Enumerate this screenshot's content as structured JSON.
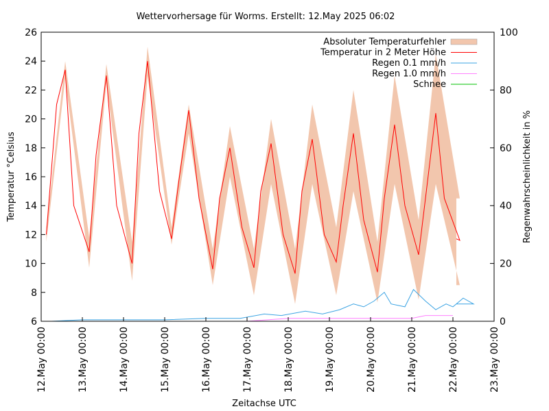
{
  "chart_data": {
    "type": "line",
    "title": "Wettervorhersage für Worms. Erstellt: 12.May 2025 06:02",
    "xlabel": "Zeitachse UTC",
    "ylabel": "Temperatur °Celsius",
    "y2label": "Regenwahrscheinlichkeit in %",
    "ylim": [
      6,
      26
    ],
    "y2lim": [
      0,
      100
    ],
    "xlim": [
      "2025-05-12 00:00",
      "2025-05-23 00:00"
    ],
    "x_ticks": [
      "12.May 00:00",
      "13.May 00:00",
      "14.May 00:00",
      "15.May 00:00",
      "16.May 00:00",
      "17.May 00:00",
      "18.May 00:00",
      "19.May 00:00",
      "20.May 00:00",
      "21.May 00:00",
      "22.May 00:00",
      "23.May 00:00"
    ],
    "y_ticks": [
      "6",
      "8",
      "10",
      "12",
      "14",
      "16",
      "18",
      "20",
      "22",
      "24",
      "26"
    ],
    "y2_ticks": [
      "0",
      "20",
      "40",
      "60",
      "80",
      "100"
    ],
    "grid": false,
    "legend_position": "top-right",
    "colors": {
      "band": "#f2c6ad",
      "temp": "#ff0000",
      "rain01": "#3aa3e3",
      "rain10": "#ff80ff",
      "snow": "#00c000"
    },
    "legend": [
      {
        "label": "Absoluter Temperaturfehler",
        "color": "#f2c6ad",
        "kind": "box"
      },
      {
        "label": "Temperatur in 2 Meter Höhe",
        "color": "#ff0000",
        "kind": "line"
      },
      {
        "label": "Regen 0.1 mm/h",
        "color": "#3aa3e3",
        "kind": "line"
      },
      {
        "label": "Regen 1.0 mm/h",
        "color": "#ff80ff",
        "kind": "line"
      },
      {
        "label": "Schnee",
        "color": "#00c000",
        "kind": "line"
      }
    ],
    "temperature_series": {
      "name": "Temperatur in 2 Meter Höhe",
      "x": [
        "2025-05-12 03:00",
        "2025-05-12 09:00",
        "2025-05-12 14:00",
        "2025-05-12 19:00",
        "2025-05-13 04:00",
        "2025-05-13 08:00",
        "2025-05-13 14:00",
        "2025-05-13 20:00",
        "2025-05-14 05:00",
        "2025-05-14 09:00",
        "2025-05-14 14:00",
        "2025-05-14 21:00",
        "2025-05-15 04:00",
        "2025-05-15 08:00",
        "2025-05-15 14:00",
        "2025-05-15 20:00",
        "2025-05-16 04:00",
        "2025-05-16 08:00",
        "2025-05-16 14:00",
        "2025-05-16 21:00",
        "2025-05-17 04:00",
        "2025-05-17 08:00",
        "2025-05-17 14:00",
        "2025-05-17 21:00",
        "2025-05-18 04:00",
        "2025-05-18 08:00",
        "2025-05-18 14:00",
        "2025-05-18 21:00",
        "2025-05-19 04:00",
        "2025-05-19 08:00",
        "2025-05-19 14:00",
        "2025-05-19 20:00",
        "2025-05-20 04:00",
        "2025-05-20 08:00",
        "2025-05-20 14:00",
        "2025-05-20 20:00",
        "2025-05-21 04:00",
        "2025-05-21 08:00",
        "2025-05-21 14:00",
        "2025-05-21 19:00",
        "2025-05-22 04:00",
        "2025-05-22 02:00"
      ],
      "values": [
        12.0,
        21.0,
        23.4,
        14.0,
        10.8,
        17.5,
        23.0,
        14.0,
        10.0,
        19.0,
        24.0,
        15.0,
        11.7,
        15.5,
        20.6,
        14.5,
        9.6,
        14.5,
        18.0,
        12.5,
        9.7,
        15.0,
        18.3,
        12.0,
        9.3,
        15.0,
        18.6,
        12.0,
        10.1,
        14.0,
        19.0,
        13.0,
        9.4,
        14.5,
        19.6,
        14.0,
        10.6,
        14.5,
        20.4,
        14.5,
        11.6,
        11.7
      ]
    },
    "error_band": {
      "name": "Absoluter Temperaturfehler",
      "x": [
        "2025-05-12 03:00",
        "2025-05-12 14:00",
        "2025-05-13 04:00",
        "2025-05-13 14:00",
        "2025-05-14 05:00",
        "2025-05-14 14:00",
        "2025-05-15 04:00",
        "2025-05-15 14:00",
        "2025-05-16 04:00",
        "2025-05-16 14:00",
        "2025-05-17 04:00",
        "2025-05-17 14:00",
        "2025-05-18 04:00",
        "2025-05-18 14:00",
        "2025-05-19 04:00",
        "2025-05-19 14:00",
        "2025-05-20 04:00",
        "2025-05-20 14:00",
        "2025-05-21 04:00",
        "2025-05-21 14:00",
        "2025-05-22 04:00",
        "2025-05-22 02:00"
      ],
      "lower": [
        11.5,
        22.8,
        9.7,
        22.5,
        8.8,
        23.0,
        11.3,
        19.0,
        8.5,
        16.0,
        7.8,
        15.5,
        7.2,
        15.5,
        7.8,
        15.0,
        7.3,
        15.5,
        7.5,
        15.5,
        8.5,
        8.5
      ],
      "upper": [
        12.5,
        24.0,
        11.8,
        23.8,
        11.5,
        25.0,
        12.5,
        21.0,
        11.0,
        19.5,
        11.0,
        20.0,
        11.0,
        21.0,
        12.5,
        22.0,
        11.5,
        23.0,
        13.0,
        24.5,
        14.5,
        14.5
      ]
    },
    "rain_01_series": {
      "name": "Regen 0.1 mm/h",
      "x": [
        "2025-05-12 06:00",
        "2025-05-13 00:00",
        "2025-05-14 00:00",
        "2025-05-15 00:00",
        "2025-05-16 00:00",
        "2025-05-16 20:00",
        "2025-05-17 10:00",
        "2025-05-17 20:00",
        "2025-05-18 10:00",
        "2025-05-18 20:00",
        "2025-05-19 06:00",
        "2025-05-19 14:00",
        "2025-05-19 20:00",
        "2025-05-20 02:00",
        "2025-05-20 08:00",
        "2025-05-20 12:00",
        "2025-05-20 20:00",
        "2025-05-21 01:00",
        "2025-05-21 08:00",
        "2025-05-21 14:00",
        "2025-05-21 20:00",
        "2025-05-22 00:00",
        "2025-05-22 06:00",
        "2025-05-22 12:00",
        "2025-05-22 02:00"
      ],
      "values": [
        0,
        0.5,
        0.5,
        0.5,
        1,
        1,
        2.5,
        2,
        3.5,
        2.5,
        4,
        6,
        5,
        7,
        10,
        6,
        5,
        11,
        7,
        4,
        6,
        5,
        8,
        6,
        6
      ]
    },
    "rain_10_series": {
      "name": "Regen 1.0 mm/h",
      "x": [
        "2025-05-17 00:00",
        "2025-05-18 00:00",
        "2025-05-19 00:00",
        "2025-05-20 00:00",
        "2025-05-21 00:00",
        "2025-05-21 08:00",
        "2025-05-22 00:00"
      ],
      "values": [
        0,
        1,
        1,
        1,
        1,
        2,
        2
      ]
    },
    "snow_series": {
      "name": "Schnee",
      "x": [
        "2025-05-12 00:00",
        "2025-05-22 02:00"
      ],
      "values": [
        0,
        0
      ]
    }
  }
}
